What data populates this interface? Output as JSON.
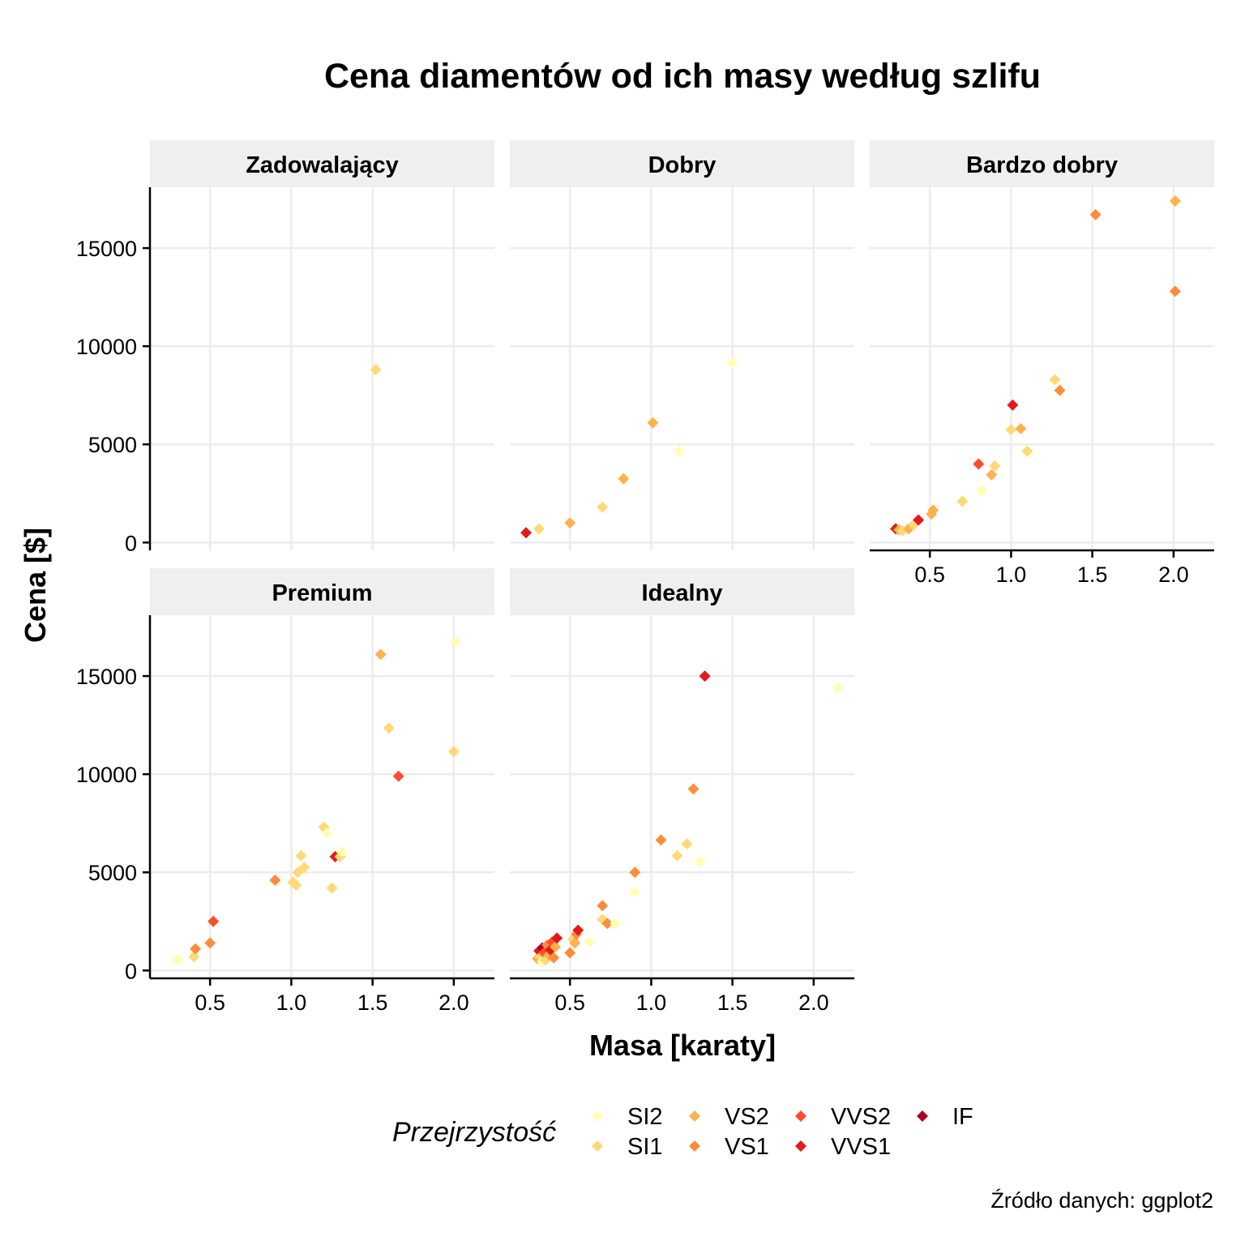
{
  "chart_data": {
    "type": "scatter",
    "title": "Cena diamentów od ich masy według szlifu",
    "xlabel": "Masa [karaty]",
    "ylabel": "Cena [$]",
    "caption": "Źródło danych: ggplot2",
    "xlim": [
      0.13,
      2.25
    ],
    "ylim": [
      -400,
      18100
    ],
    "x_ticks": [
      0.5,
      1.0,
      1.5,
      2.0
    ],
    "x_tick_labels": [
      "0.5",
      "1.0",
      "1.5",
      "2.0"
    ],
    "y_ticks": [
      0,
      5000,
      10000,
      15000
    ],
    "y_tick_labels": [
      "0",
      "5000",
      "10000",
      "15000"
    ],
    "grid": true,
    "legend": {
      "title": "Przejrzystość",
      "placement": "bottom",
      "entries": [
        {
          "name": "SI2",
          "color": "#ffffb2"
        },
        {
          "name": "SI1",
          "color": "#fed976"
        },
        {
          "name": "VS2",
          "color": "#feb24c"
        },
        {
          "name": "VS1",
          "color": "#fd8d3c"
        },
        {
          "name": "VVS2",
          "color": "#fc4e2a"
        },
        {
          "name": "VVS1",
          "color": "#e31a1c"
        },
        {
          "name": "IF",
          "color": "#b10026"
        }
      ]
    },
    "facets": [
      {
        "name": "Zadowalający",
        "points": [
          {
            "x": 1.52,
            "y": 8800,
            "clarity": "SI1"
          }
        ]
      },
      {
        "name": "Dobry",
        "points": [
          {
            "x": 0.23,
            "y": 500,
            "clarity": "VVS1"
          },
          {
            "x": 0.31,
            "y": 700,
            "clarity": "SI1"
          },
          {
            "x": 0.5,
            "y": 1000,
            "clarity": "VS2"
          },
          {
            "x": 0.7,
            "y": 1800,
            "clarity": "SI1"
          },
          {
            "x": 0.83,
            "y": 3250,
            "clarity": "VS2"
          },
          {
            "x": 1.01,
            "y": 6100,
            "clarity": "VS2"
          },
          {
            "x": 1.17,
            "y": 4650,
            "clarity": "SI2"
          },
          {
            "x": 1.5,
            "y": 9150,
            "clarity": "SI2"
          }
        ]
      },
      {
        "name": "Bardzo dobry",
        "points": [
          {
            "x": 0.29,
            "y": 700,
            "clarity": "VVS1"
          },
          {
            "x": 0.31,
            "y": 650,
            "clarity": "VS2"
          },
          {
            "x": 0.33,
            "y": 600,
            "clarity": "SI1"
          },
          {
            "x": 0.37,
            "y": 700,
            "clarity": "VS2"
          },
          {
            "x": 0.4,
            "y": 900,
            "clarity": "SI1"
          },
          {
            "x": 0.43,
            "y": 1150,
            "clarity": "VVS1"
          },
          {
            "x": 0.51,
            "y": 1450,
            "clarity": "VS2"
          },
          {
            "x": 0.52,
            "y": 1650,
            "clarity": "VS2"
          },
          {
            "x": 0.7,
            "y": 2100,
            "clarity": "SI1"
          },
          {
            "x": 0.82,
            "y": 2650,
            "clarity": "SI2"
          },
          {
            "x": 0.8,
            "y": 4000,
            "clarity": "VVS2"
          },
          {
            "x": 0.88,
            "y": 3450,
            "clarity": "VS2"
          },
          {
            "x": 0.9,
            "y": 3900,
            "clarity": "SI1"
          },
          {
            "x": 1.0,
            "y": 5750,
            "clarity": "SI1"
          },
          {
            "x": 1.01,
            "y": 7000,
            "clarity": "VVS1"
          },
          {
            "x": 1.06,
            "y": 5800,
            "clarity": "VS2"
          },
          {
            "x": 1.1,
            "y": 4650,
            "clarity": "SI1"
          },
          {
            "x": 1.27,
            "y": 8300,
            "clarity": "SI1"
          },
          {
            "x": 1.3,
            "y": 7750,
            "clarity": "VS1"
          },
          {
            "x": 1.52,
            "y": 16700,
            "clarity": "VS1"
          },
          {
            "x": 2.01,
            "y": 17400,
            "clarity": "VS2"
          },
          {
            "x": 2.01,
            "y": 12800,
            "clarity": "VS1"
          }
        ]
      },
      {
        "name": "Premium",
        "points": [
          {
            "x": 0.3,
            "y": 550,
            "clarity": "SI2"
          },
          {
            "x": 0.4,
            "y": 700,
            "clarity": "SI1"
          },
          {
            "x": 0.41,
            "y": 1100,
            "clarity": "VS1"
          },
          {
            "x": 0.5,
            "y": 1400,
            "clarity": "VS1"
          },
          {
            "x": 0.52,
            "y": 2500,
            "clarity": "VVS2"
          },
          {
            "x": 0.9,
            "y": 4600,
            "clarity": "VS1"
          },
          {
            "x": 1.01,
            "y": 4500,
            "clarity": "SI1"
          },
          {
            "x": 1.03,
            "y": 4350,
            "clarity": "SI1"
          },
          {
            "x": 1.04,
            "y": 5000,
            "clarity": "SI1"
          },
          {
            "x": 1.06,
            "y": 5850,
            "clarity": "SI1"
          },
          {
            "x": 1.08,
            "y": 5250,
            "clarity": "SI1"
          },
          {
            "x": 1.2,
            "y": 7300,
            "clarity": "SI1"
          },
          {
            "x": 1.22,
            "y": 7000,
            "clarity": "SI2"
          },
          {
            "x": 1.25,
            "y": 4200,
            "clarity": "SI1"
          },
          {
            "x": 1.27,
            "y": 5800,
            "clarity": "VVS1"
          },
          {
            "x": 1.3,
            "y": 5800,
            "clarity": "SI1"
          },
          {
            "x": 1.31,
            "y": 6050,
            "clarity": "SI2"
          },
          {
            "x": 1.55,
            "y": 16100,
            "clarity": "VS2"
          },
          {
            "x": 1.6,
            "y": 12350,
            "clarity": "SI1"
          },
          {
            "x": 1.66,
            "y": 9900,
            "clarity": "VVS2"
          },
          {
            "x": 2.0,
            "y": 11150,
            "clarity": "SI1"
          },
          {
            "x": 2.01,
            "y": 16750,
            "clarity": "SI2"
          }
        ]
      },
      {
        "name": "Idealny",
        "points": [
          {
            "x": 0.3,
            "y": 600,
            "clarity": "VS2"
          },
          {
            "x": 0.31,
            "y": 1000,
            "clarity": "VVS1"
          },
          {
            "x": 0.32,
            "y": 700,
            "clarity": "SI1"
          },
          {
            "x": 0.33,
            "y": 1150,
            "clarity": "IF"
          },
          {
            "x": 0.33,
            "y": 450,
            "clarity": "SI2"
          },
          {
            "x": 0.34,
            "y": 900,
            "clarity": "VVS2"
          },
          {
            "x": 0.35,
            "y": 550,
            "clarity": "SI1"
          },
          {
            "x": 0.36,
            "y": 1300,
            "clarity": "VS1"
          },
          {
            "x": 0.37,
            "y": 800,
            "clarity": "VS2"
          },
          {
            "x": 0.38,
            "y": 1050,
            "clarity": "VVS1"
          },
          {
            "x": 0.39,
            "y": 1450,
            "clarity": "VVS2"
          },
          {
            "x": 0.4,
            "y": 650,
            "clarity": "VS1"
          },
          {
            "x": 0.41,
            "y": 1200,
            "clarity": "VS2"
          },
          {
            "x": 0.42,
            "y": 1650,
            "clarity": "VVS1"
          },
          {
            "x": 0.5,
            "y": 900,
            "clarity": "VS1"
          },
          {
            "x": 0.52,
            "y": 1600,
            "clarity": "SI1"
          },
          {
            "x": 0.53,
            "y": 1400,
            "clarity": "VS2"
          },
          {
            "x": 0.54,
            "y": 1850,
            "clarity": "VS1"
          },
          {
            "x": 0.55,
            "y": 2050,
            "clarity": "VVS1"
          },
          {
            "x": 0.62,
            "y": 1450,
            "clarity": "SI2"
          },
          {
            "x": 0.7,
            "y": 3300,
            "clarity": "VS1"
          },
          {
            "x": 0.7,
            "y": 2600,
            "clarity": "SI1"
          },
          {
            "x": 0.73,
            "y": 2400,
            "clarity": "VS1"
          },
          {
            "x": 0.78,
            "y": 2400,
            "clarity": "SI2"
          },
          {
            "x": 0.9,
            "y": 5000,
            "clarity": "VS1"
          },
          {
            "x": 0.9,
            "y": 4000,
            "clarity": "SI2"
          },
          {
            "x": 1.06,
            "y": 6650,
            "clarity": "VS1"
          },
          {
            "x": 1.16,
            "y": 5850,
            "clarity": "SI1"
          },
          {
            "x": 1.22,
            "y": 6450,
            "clarity": "SI1"
          },
          {
            "x": 1.26,
            "y": 9250,
            "clarity": "VS1"
          },
          {
            "x": 1.3,
            "y": 5550,
            "clarity": "SI2"
          },
          {
            "x": 1.33,
            "y": 15000,
            "clarity": "VVS1"
          },
          {
            "x": 2.15,
            "y": 14400,
            "clarity": "SI2"
          }
        ]
      }
    ]
  }
}
